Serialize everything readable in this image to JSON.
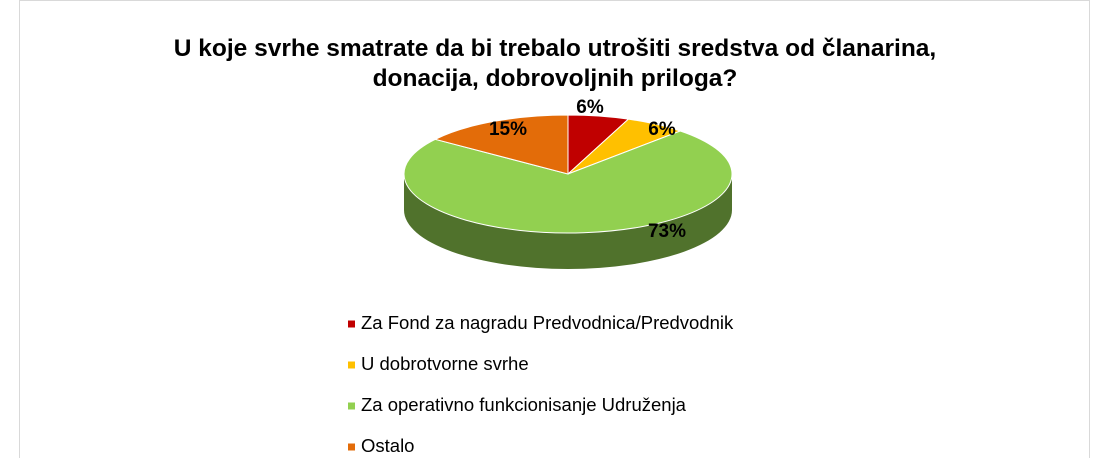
{
  "chart_data": {
    "type": "pie",
    "title": "U koje svrhe smatrate da bi trebalo utrošiti sredstva od članarina, donacija, dobrovoljnih priloga?",
    "categories": [
      "Za Fond za nagradu Predvodnica/Predvodnik",
      "U dobrotvorne svrhe",
      "Za operativno funkcionisanje Udruženja",
      "Ostalo"
    ],
    "values": [
      6,
      6,
      73,
      15
    ],
    "value_labels": [
      "6%",
      "6%",
      "73%",
      "15%"
    ],
    "colors": [
      "#c00000",
      "#ffc000",
      "#92d050",
      "#e36c09"
    ],
    "legend": "bottom"
  }
}
